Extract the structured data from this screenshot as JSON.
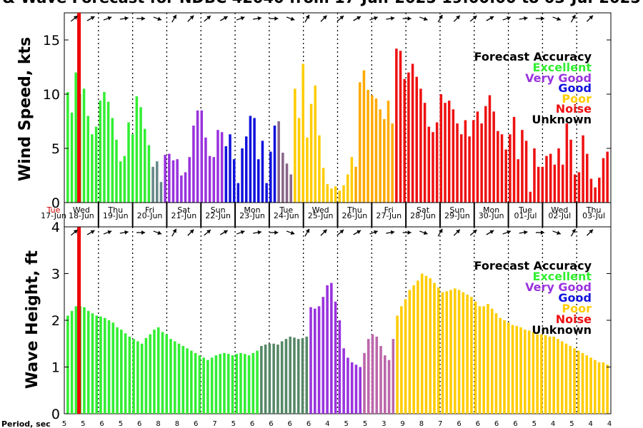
{
  "title": "& Wave Forecast for NDBC 42040 from 17-Jun-2025 19:00:00 to 03-Jul-2025",
  "day_labels": [
    {
      "dow": "Tue",
      "date": "17-Jun",
      "x": 0.0
    },
    {
      "dow": "Wed",
      "date": "18-Jun",
      "x": 0.5
    },
    {
      "dow": "Thu",
      "date": "19-Jun",
      "x": 1.5
    },
    {
      "dow": "Fri",
      "date": "20-Jun",
      "x": 2.5
    },
    {
      "dow": "Sat",
      "date": "21-Jun",
      "x": 3.5
    },
    {
      "dow": "Sun",
      "date": "22-Jun",
      "x": 4.5
    },
    {
      "dow": "Mon",
      "date": "23-Jun",
      "x": 5.5
    },
    {
      "dow": "Tue",
      "date": "24-Jun",
      "x": 6.5
    },
    {
      "dow": "Wed",
      "date": "25-Jun",
      "x": 7.5
    },
    {
      "dow": "Thu",
      "date": "26-Jun",
      "x": 8.5
    },
    {
      "dow": "Fri",
      "date": "27-Jun",
      "x": 9.5
    },
    {
      "dow": "Sat",
      "date": "28-Jun",
      "x": 10.5
    },
    {
      "dow": "Sun",
      "date": "29-Jun",
      "x": 11.5
    },
    {
      "dow": "Mon",
      "date": "30-Jun",
      "x": 12.5
    },
    {
      "dow": "Tue",
      "date": "01-Jul",
      "x": 13.5
    },
    {
      "dow": "Wed",
      "date": "02-Jul",
      "x": 14.5
    },
    {
      "dow": "Thu",
      "date": "03-Jul",
      "x": 15.5
    }
  ],
  "legend": {
    "title": "Forecast Accuracy",
    "items": [
      {
        "label": "Excellent",
        "color": "#33ee33"
      },
      {
        "label": "Very Good",
        "color": "#9933dd"
      },
      {
        "label": "Good",
        "color": "#1111dd"
      },
      {
        "label": "Poor",
        "color": "#ffcc00"
      },
      {
        "label": "Noise",
        "color": "#ee1111"
      },
      {
        "label": "Unknown",
        "color": "#000000"
      }
    ]
  },
  "period_label": "Period, sec",
  "period_values": [
    "5",
    "5",
    "6",
    "5",
    "6",
    "8",
    "8",
    "6",
    "7",
    "5",
    "6",
    "6",
    "6",
    "6",
    "4",
    "5",
    "5",
    "3",
    "9",
    "8",
    "7",
    "6",
    "6",
    "6",
    "6",
    "5",
    "4",
    "5",
    "4",
    "4"
  ],
  "chart_data": [
    {
      "type": "bar",
      "title": "",
      "ylabel": "Wind Speed, kts",
      "xlabel": "",
      "ylim": [
        0,
        17.5
      ],
      "yticks": [
        0,
        5,
        10,
        15
      ],
      "x_units": "days since 17-Jun 00:00 (axis labelled by date)",
      "values": [
        10.2,
        8.3,
        12.0,
        10.0,
        10.5,
        8.0,
        6.3,
        7.0,
        9.4,
        10.2,
        9.3,
        7.8,
        5.8,
        3.8,
        4.3,
        7.4,
        6.3,
        9.8,
        8.8,
        6.8,
        5.3,
        3.3,
        3.8,
        1.9,
        4.4,
        4.5,
        3.9,
        4.0,
        2.5,
        2.8,
        4.2,
        7.1,
        8.5,
        8.5,
        6.0,
        4.3,
        4.2,
        6.7,
        6.5,
        5.2,
        6.3,
        4.0,
        1.8,
        5.0,
        6.1,
        8.0,
        7.8,
        4.0,
        5.7,
        1.8,
        4.7,
        7.1,
        7.5,
        4.6,
        3.6,
        2.6,
        10.5,
        7.8,
        12.8,
        6.0,
        9.1,
        10.8,
        6.2,
        3.2,
        1.7,
        1.3,
        1.5,
        1.1,
        1.6,
        2.6,
        4.2,
        3.3,
        11.1,
        12.2,
        10.4,
        9.9,
        9.6,
        8.6,
        7.7,
        9.4,
        7.3,
        14.2,
        14.0,
        11.4,
        12.0,
        12.8,
        11.6,
        10.5,
        9.2,
        7.0,
        6.5,
        7.4,
        10.0,
        9.2,
        9.4,
        8.6,
        7.3,
        6.3,
        7.6,
        6.1,
        7.6,
        8.4,
        7.3,
        8.9,
        9.9,
        8.4,
        6.6,
        6.3,
        4.9,
        6.3,
        7.9,
        4.0,
        6.7,
        5.7,
        1.0,
        5.0,
        3.3,
        3.3,
        4.3,
        4.5,
        3.5,
        5.0,
        3.5,
        7.3,
        5.8,
        2.6,
        2.8,
        6.2,
        4.5,
        2.2,
        1.4,
        2.3,
        4.1,
        4.7
      ],
      "categories_colored": "excellent, good, very good, poor, noise segments",
      "color_segments": [
        {
          "from": 0,
          "to": 20,
          "color": "#33ee33"
        },
        {
          "from": 21,
          "to": 23,
          "color": "#668888"
        },
        {
          "from": 24,
          "to": 38,
          "color": "#9933dd"
        },
        {
          "from": 39,
          "to": 51,
          "color": "#1111dd"
        },
        {
          "from": 52,
          "to": 55,
          "color": "#886688"
        },
        {
          "from": 56,
          "to": 70,
          "color": "#ffcc00"
        },
        {
          "from": 71,
          "to": 80,
          "color": "#ffaa00"
        },
        {
          "from": 81,
          "to": 135,
          "color": "#ee1111"
        }
      ],
      "reference_line_x": 0.43
    },
    {
      "type": "bar",
      "title": "",
      "ylabel": "Wave Height, ft",
      "xlabel": "",
      "ylim": [
        0,
        4
      ],
      "yticks": [
        0,
        1,
        2,
        3,
        4
      ],
      "values": [
        2.1,
        2.2,
        2.3,
        2.3,
        2.28,
        2.2,
        2.15,
        2.1,
        2.08,
        2.05,
        2.0,
        1.95,
        1.85,
        1.8,
        1.72,
        1.65,
        1.6,
        1.55,
        1.5,
        1.62,
        1.7,
        1.8,
        1.85,
        1.75,
        1.7,
        1.6,
        1.55,
        1.5,
        1.45,
        1.4,
        1.35,
        1.3,
        1.25,
        1.2,
        1.15,
        1.2,
        1.25,
        1.28,
        1.3,
        1.28,
        1.25,
        1.28,
        1.3,
        1.28,
        1.25,
        1.3,
        1.35,
        1.45,
        1.48,
        1.5,
        1.5,
        1.48,
        1.55,
        1.6,
        1.65,
        1.63,
        1.6,
        1.62,
        1.65,
        2.28,
        2.25,
        2.3,
        2.5,
        2.75,
        2.8,
        2.4,
        2.0,
        1.4,
        1.2,
        1.1,
        1.05,
        1.0,
        1.3,
        1.6,
        1.7,
        1.65,
        1.45,
        1.25,
        1.15,
        1.6,
        2.1,
        2.3,
        2.45,
        2.65,
        2.75,
        2.85,
        3.0,
        2.95,
        2.9,
        2.8,
        2.7,
        2.6,
        2.62,
        2.65,
        2.68,
        2.65,
        2.6,
        2.55,
        2.5,
        2.4,
        2.3,
        2.3,
        2.35,
        2.25,
        2.15,
        2.05,
        2.0,
        1.95,
        1.9,
        1.88,
        1.85,
        1.8,
        1.78,
        1.75,
        1.7,
        1.7,
        1.68,
        1.65,
        1.65,
        1.6,
        1.55,
        1.5,
        1.45,
        1.4,
        1.35,
        1.3,
        1.25,
        1.2,
        1.15,
        1.1,
        1.1,
        1.05
      ],
      "color_segments": [
        {
          "from": 0,
          "to": 46,
          "color": "#33ee33"
        },
        {
          "from": 47,
          "to": 58,
          "color": "#558866"
        },
        {
          "from": 59,
          "to": 71,
          "color": "#9933dd"
        },
        {
          "from": 72,
          "to": 79,
          "color": "#bb66aa"
        },
        {
          "from": 80,
          "to": 135,
          "color": "#ffcc00"
        }
      ],
      "reference_line_x": 0.43
    }
  ]
}
